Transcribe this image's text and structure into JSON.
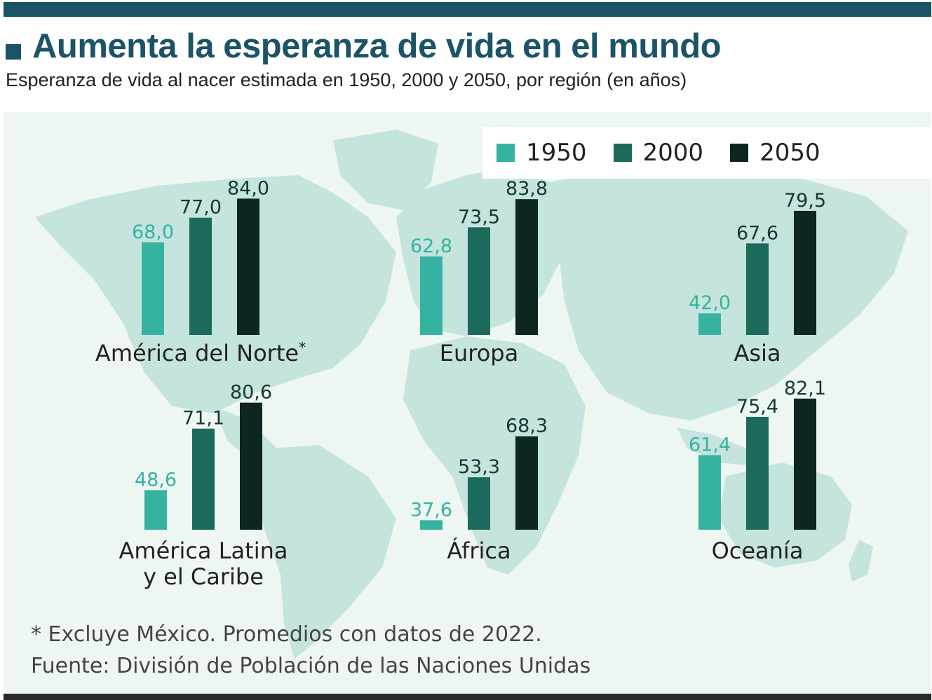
{
  "header": {
    "title": "Aumenta la esperanza de vida en el mundo",
    "subtitle": "Esperanza de vida al nacer estimada en 1950, 2000 y 2050, por región (en años)"
  },
  "colors": {
    "accent": "#1b5466",
    "c1950": "#35b3a0",
    "c2000": "#1b6a5a",
    "c2050": "#0d2622",
    "label1950": "#35b3a0",
    "label_dark": "#163832",
    "map_land": "#c5e4dd",
    "map_bg": "#eef6f2"
  },
  "chart_data": {
    "type": "bar",
    "title": "Aumenta la esperanza de vida en el mundo",
    "subtitle": "Esperanza de vida al nacer estimada en 1950, 2000 y 2050, por región (en años)",
    "unit": "años",
    "series": [
      {
        "name": "1950",
        "color": "#35b3a0"
      },
      {
        "name": "2000",
        "color": "#1b6a5a"
      },
      {
        "name": "2050",
        "color": "#0d2622"
      }
    ],
    "regions": [
      {
        "name": "América del Norte",
        "suffix": "*",
        "values": [
          68.0,
          77.0,
          84.0
        ],
        "labels": [
          "68,0",
          "77,0",
          "84,0"
        ]
      },
      {
        "name": "Europa",
        "suffix": "",
        "values": [
          62.8,
          73.5,
          83.8
        ],
        "labels": [
          "62,8",
          "73,5",
          "83,8"
        ]
      },
      {
        "name": "Asia",
        "suffix": "",
        "values": [
          42.0,
          67.6,
          79.5
        ],
        "labels": [
          "42,0",
          "67,6",
          "79,5"
        ]
      },
      {
        "name": "América Latina y el Caribe",
        "suffix": "",
        "values": [
          48.6,
          71.1,
          80.6
        ],
        "labels": [
          "48,6",
          "71,1",
          "80,6"
        ]
      },
      {
        "name": "África",
        "suffix": "",
        "values": [
          37.6,
          53.3,
          68.3
        ],
        "labels": [
          "37,6",
          "53,3",
          "68,3"
        ]
      },
      {
        "name": "Oceanía",
        "suffix": "",
        "values": [
          61.4,
          75.4,
          82.1
        ],
        "labels": [
          "61,4",
          "75,4",
          "82,1"
        ]
      }
    ]
  },
  "legend": {
    "items": [
      "1950",
      "2000",
      "2050"
    ]
  },
  "footer": {
    "note": "* Excluye México. Promedios con datos de 2022.",
    "source": "Fuente: División de Población de las Naciones Unidas"
  }
}
